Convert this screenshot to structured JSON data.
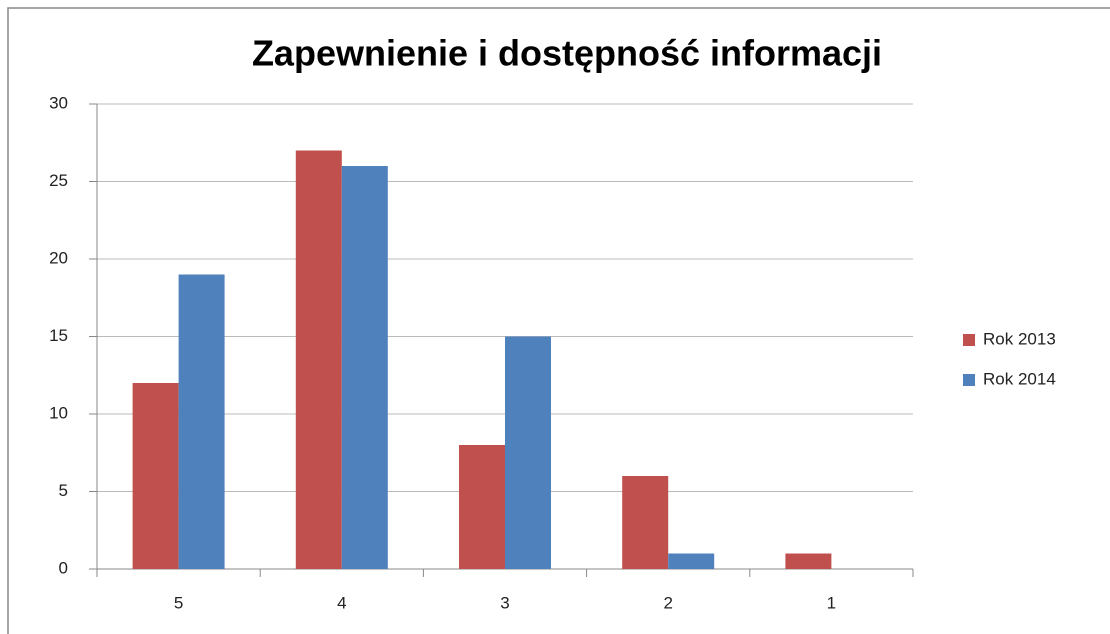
{
  "chart_data": {
    "type": "bar",
    "title": "Zapewnienie i dostępność informacji",
    "categories": [
      "5",
      "4",
      "3",
      "2",
      "1"
    ],
    "series": [
      {
        "name": "Rok 2013",
        "color": "#c0504d",
        "values": [
          12,
          27,
          8,
          6,
          1
        ]
      },
      {
        "name": "Rok 2014",
        "color": "#4f81bd",
        "values": [
          19,
          26,
          15,
          1,
          0
        ]
      }
    ],
    "ylim": [
      0,
      30
    ],
    "yticks": [
      0,
      5,
      10,
      15,
      20,
      25,
      30
    ],
    "grid": true,
    "legend": "right"
  }
}
